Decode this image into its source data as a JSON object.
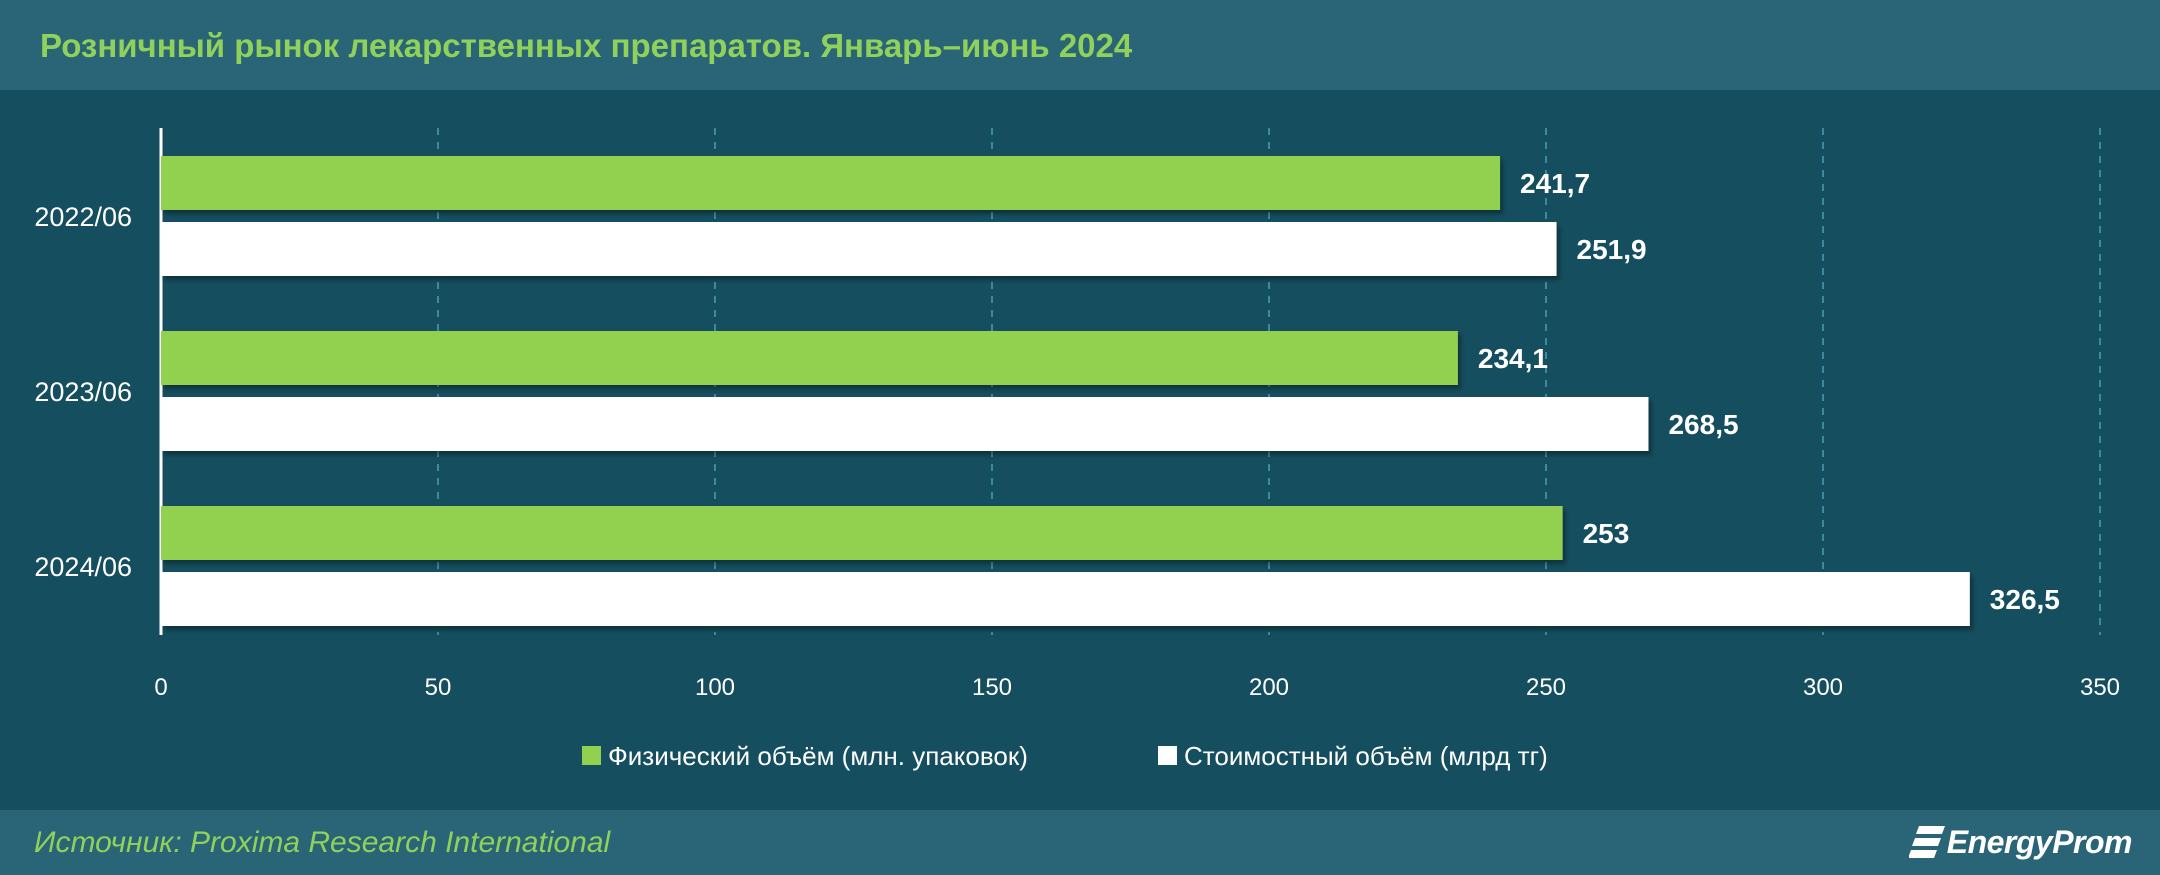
{
  "title": "Розничный рынок лекарственных препаратов. Январь–июнь 2024",
  "source": "Источник: Proxima Research International",
  "logo": {
    "text": "EnergyProm",
    "icon": "energyprom-logo-icon"
  },
  "colors": {
    "background": "#154e5e",
    "band": "#2a6577",
    "title": "#8fd15a",
    "physical": "#92d050",
    "value": "#ffffff",
    "grid": "#3a8aa0"
  },
  "chart_data": {
    "type": "bar",
    "orientation": "horizontal",
    "categories": [
      "2022/06",
      "2023/06",
      "2024/06"
    ],
    "series": [
      {
        "name": "Физический объём (млн. упаковок)",
        "values": [
          241.7,
          234.1,
          253
        ],
        "labels": [
          "241,7",
          "234,1",
          "253"
        ],
        "color": "#92d050"
      },
      {
        "name": "Стоимостный объём (млрд тг)",
        "values": [
          251.9,
          268.5,
          326.5
        ],
        "labels": [
          "251,9",
          "268,5",
          "326,5"
        ],
        "color": "#ffffff"
      }
    ],
    "xlim": [
      0,
      350
    ],
    "xticks": [
      0,
      50,
      100,
      150,
      200,
      250,
      300,
      350
    ],
    "grid": true,
    "legend": "bottom"
  }
}
